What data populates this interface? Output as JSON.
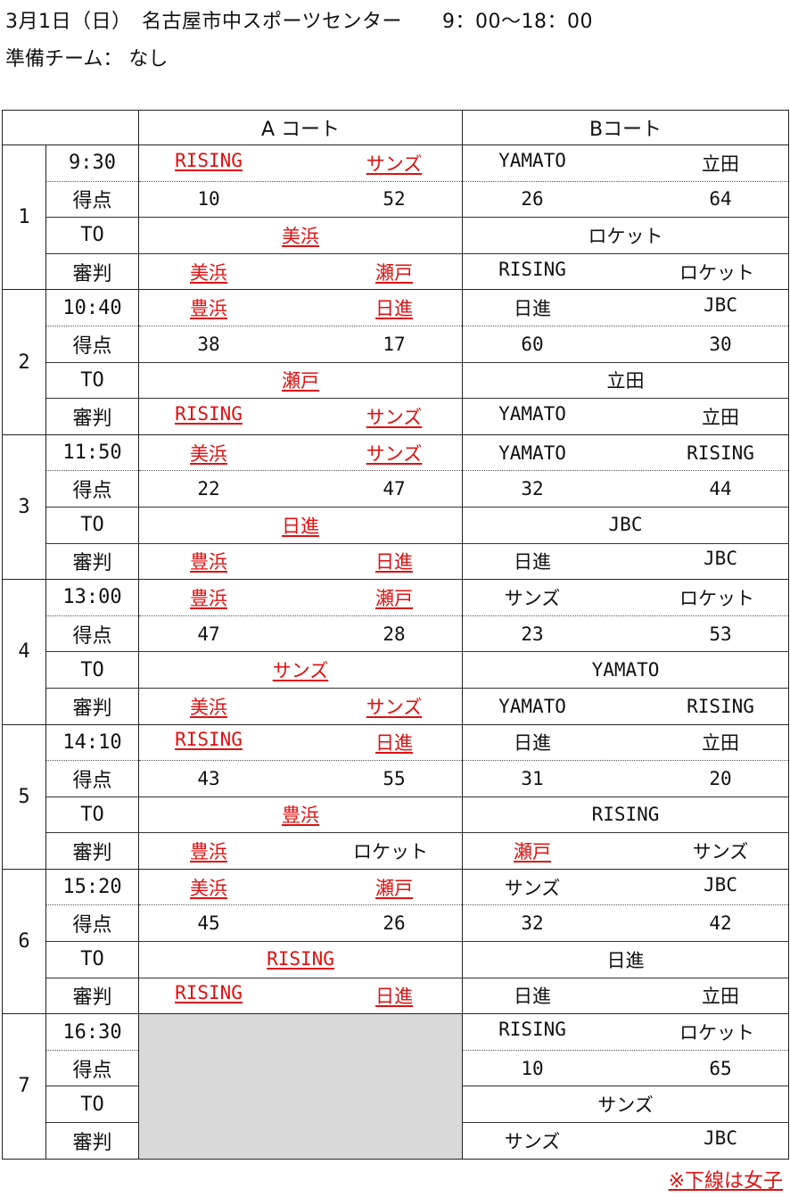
{
  "header": {
    "line1": "3月1日（日）　名古屋市中スポーツセンター　　9：00～18：00",
    "line2": "準備チーム： なし"
  },
  "columns": {
    "court_a": "A コート",
    "court_b": "Bコート"
  },
  "row_labels": {
    "score": "得点",
    "to": "TO",
    "referee": "審判"
  },
  "games": [
    {
      "no": "1",
      "time": "9:30",
      "a": {
        "teams": [
          {
            "name": "RISING",
            "girls": true
          },
          {
            "name": "サンズ",
            "girls": true
          }
        ],
        "scores": [
          "10",
          "52"
        ],
        "to": {
          "name": "美浜",
          "girls": true
        },
        "refs": [
          {
            "name": "美浜",
            "girls": true
          },
          {
            "name": "瀬戸",
            "girls": true
          }
        ]
      },
      "b": {
        "teams": [
          {
            "name": "YAMATO",
            "girls": false
          },
          {
            "name": "立田",
            "girls": false
          }
        ],
        "scores": [
          "26",
          "64"
        ],
        "to": {
          "name": "ロケット",
          "girls": false
        },
        "refs": [
          {
            "name": "RISING",
            "girls": false
          },
          {
            "name": "ロケット",
            "girls": false
          }
        ]
      }
    },
    {
      "no": "2",
      "time": "10:40",
      "a": {
        "teams": [
          {
            "name": "豊浜",
            "girls": true
          },
          {
            "name": "日進",
            "girls": true
          }
        ],
        "scores": [
          "38",
          "17"
        ],
        "to": {
          "name": "瀬戸",
          "girls": true
        },
        "refs": [
          {
            "name": "RISING",
            "girls": true
          },
          {
            "name": "サンズ",
            "girls": true
          }
        ]
      },
      "b": {
        "teams": [
          {
            "name": "日進",
            "girls": false
          },
          {
            "name": "JBC",
            "girls": false
          }
        ],
        "scores": [
          "60",
          "30"
        ],
        "to": {
          "name": "立田",
          "girls": false
        },
        "refs": [
          {
            "name": "YAMATO",
            "girls": false
          },
          {
            "name": "立田",
            "girls": false
          }
        ]
      }
    },
    {
      "no": "3",
      "time": "11:50",
      "a": {
        "teams": [
          {
            "name": "美浜",
            "girls": true
          },
          {
            "name": "サンズ",
            "girls": true
          }
        ],
        "scores": [
          "22",
          "47"
        ],
        "to": {
          "name": "日進",
          "girls": true
        },
        "refs": [
          {
            "name": "豊浜",
            "girls": true
          },
          {
            "name": "日進",
            "girls": true
          }
        ]
      },
      "b": {
        "teams": [
          {
            "name": "YAMATO",
            "girls": false
          },
          {
            "name": "RISING",
            "girls": false
          }
        ],
        "scores": [
          "32",
          "44"
        ],
        "to": {
          "name": "JBC",
          "girls": false
        },
        "refs": [
          {
            "name": "日進",
            "girls": false
          },
          {
            "name": "JBC",
            "girls": false
          }
        ]
      }
    },
    {
      "no": "4",
      "time": "13:00",
      "a": {
        "teams": [
          {
            "name": "豊浜",
            "girls": true
          },
          {
            "name": "瀬戸",
            "girls": true
          }
        ],
        "scores": [
          "47",
          "28"
        ],
        "to": {
          "name": "サンズ",
          "girls": true
        },
        "refs": [
          {
            "name": "美浜",
            "girls": true
          },
          {
            "name": "サンズ",
            "girls": true
          }
        ]
      },
      "b": {
        "teams": [
          {
            "name": "サンズ",
            "girls": false
          },
          {
            "name": "ロケット",
            "girls": false
          }
        ],
        "scores": [
          "23",
          "53"
        ],
        "to": {
          "name": "YAMATO",
          "girls": false
        },
        "refs": [
          {
            "name": "YAMATO",
            "girls": false
          },
          {
            "name": "RISING",
            "girls": false
          }
        ]
      }
    },
    {
      "no": "5",
      "time": "14:10",
      "a": {
        "teams": [
          {
            "name": "RISING",
            "girls": true
          },
          {
            "name": "日進",
            "girls": true
          }
        ],
        "scores": [
          "43",
          "55"
        ],
        "to": {
          "name": "豊浜",
          "girls": true
        },
        "refs": [
          {
            "name": "豊浜",
            "girls": true
          },
          {
            "name": "ロケット",
            "girls": false
          }
        ]
      },
      "b": {
        "teams": [
          {
            "name": "日進",
            "girls": false
          },
          {
            "name": "立田",
            "girls": false
          }
        ],
        "scores": [
          "31",
          "20"
        ],
        "to": {
          "name": "RISING",
          "girls": false
        },
        "refs": [
          {
            "name": "瀬戸",
            "girls": true
          },
          {
            "name": "サンズ",
            "girls": false
          }
        ]
      }
    },
    {
      "no": "6",
      "time": "15:20",
      "a": {
        "teams": [
          {
            "name": "美浜",
            "girls": true
          },
          {
            "name": "瀬戸",
            "girls": true
          }
        ],
        "scores": [
          "45",
          "26"
        ],
        "to": {
          "name": "RISING",
          "girls": true
        },
        "refs": [
          {
            "name": "RISING",
            "girls": true
          },
          {
            "name": "日進",
            "girls": true
          }
        ]
      },
      "b": {
        "teams": [
          {
            "name": "サンズ",
            "girls": false
          },
          {
            "name": "JBC",
            "girls": false
          }
        ],
        "scores": [
          "32",
          "42"
        ],
        "to": {
          "name": "日進",
          "girls": false
        },
        "refs": [
          {
            "name": "日進",
            "girls": false
          },
          {
            "name": "立田",
            "girls": false
          }
        ]
      }
    },
    {
      "no": "7",
      "time": "16:30",
      "a": null,
      "b": {
        "teams": [
          {
            "name": "RISING",
            "girls": false
          },
          {
            "name": "ロケット",
            "girls": false
          }
        ],
        "scores": [
          "10",
          "65"
        ],
        "to": {
          "name": "サンズ",
          "girls": false
        },
        "refs": [
          {
            "name": "サンズ",
            "girls": false
          },
          {
            "name": "JBC",
            "girls": false
          }
        ]
      }
    }
  ],
  "note": "※下線は女子",
  "colors": {
    "girls_text": "#e01010",
    "empty_court": "#d9d9d9"
  }
}
